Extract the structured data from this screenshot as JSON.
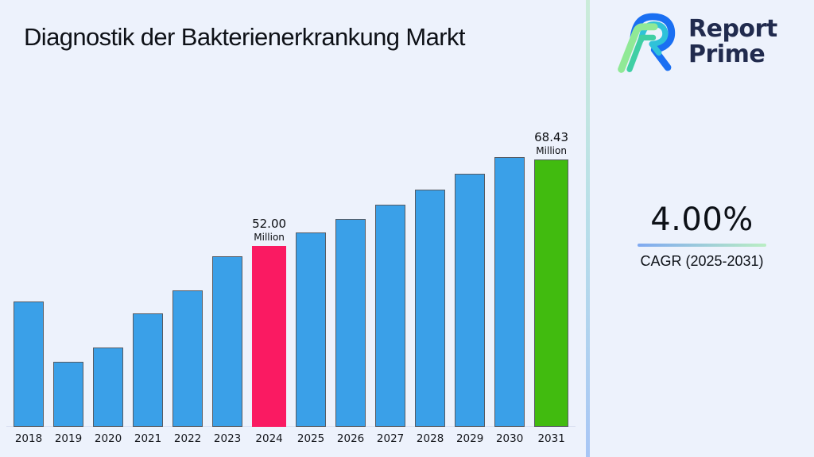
{
  "header": {
    "title": "Diagnostik der Bakterienerkrankung Markt"
  },
  "logo": {
    "line1": "Report",
    "line2": "Prime",
    "text_color": "#212b4e",
    "mark_colors": {
      "blue": "#1a6ff2",
      "cyan": "#2fc2d9",
      "light_green": "#90e996",
      "teal": "#3fcfa4"
    }
  },
  "side_panel": {
    "cagr_value": "4.00%",
    "cagr_label": "CAGR (2025-2031)",
    "underline_gradient": [
      "#7fa9f1",
      "#baeec3"
    ],
    "divider_gradient": [
      "#cbecd9",
      "#a8c6f5"
    ]
  },
  "page": {
    "background": "#edf2fc"
  },
  "chart_data": {
    "type": "bar",
    "title": "Diagnostik der Bakterienerkrankung Markt",
    "unit": "Million",
    "categories": [
      "2018",
      "2019",
      "2020",
      "2021",
      "2022",
      "2023",
      "2024",
      "2025",
      "2026",
      "2027",
      "2028",
      "2029",
      "2030",
      "2031"
    ],
    "values": [
      43.4,
      34.1,
      36.3,
      41.6,
      45.2,
      50.5,
      52.0,
      54.08,
      56.24,
      58.49,
      60.83,
      63.27,
      65.8,
      68.43
    ],
    "xlabel": "",
    "ylabel": "",
    "ylim": [
      24,
      70
    ],
    "grid": false,
    "legend_position": "none",
    "bar_colors": {
      "default": "#3aa0e8",
      "2024": "#fa1a62",
      "2031": "#41bb0f"
    },
    "bar_border_colors": {
      "default": "#565b63",
      "2024": "none",
      "2031": "#565b63"
    },
    "annotations": [
      {
        "year": "2024",
        "value_label": "52.00",
        "unit_label": "Million"
      },
      {
        "year": "2031",
        "value_label": "68.43",
        "unit_label": "Million"
      }
    ]
  }
}
